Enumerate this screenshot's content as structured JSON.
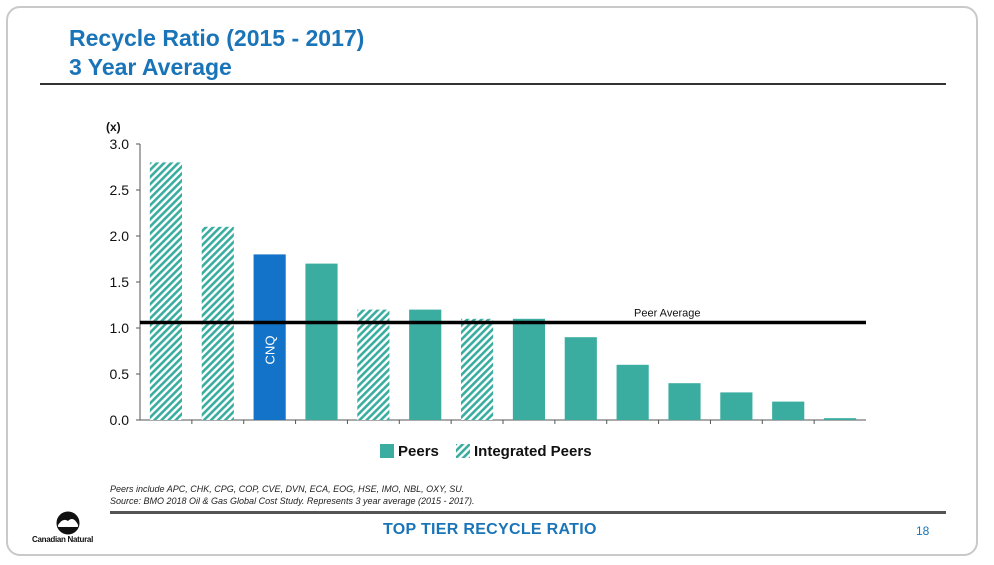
{
  "title_line1": "Recycle Ratio (2015 - 2017)",
  "title_line2": "3 Year Average",
  "chart_data": {
    "type": "bar",
    "ylabel": "(x)",
    "ylim": [
      0,
      3.0
    ],
    "yticks": [
      "0.0",
      "0.5",
      "1.0",
      "1.5",
      "2.0",
      "2.5",
      "3.0"
    ],
    "bars": [
      {
        "value": 2.8,
        "group": "integrated"
      },
      {
        "value": 2.1,
        "group": "integrated"
      },
      {
        "value": 1.8,
        "group": "cnq",
        "label": "CNQ"
      },
      {
        "value": 1.7,
        "group": "peers"
      },
      {
        "value": 1.2,
        "group": "integrated"
      },
      {
        "value": 1.2,
        "group": "peers"
      },
      {
        "value": 1.1,
        "group": "integrated"
      },
      {
        "value": 1.1,
        "group": "peers"
      },
      {
        "value": 0.9,
        "group": "peers"
      },
      {
        "value": 0.6,
        "group": "peers"
      },
      {
        "value": 0.4,
        "group": "peers"
      },
      {
        "value": 0.3,
        "group": "peers"
      },
      {
        "value": 0.2,
        "group": "peers"
      },
      {
        "value": 0.02,
        "group": "peers"
      }
    ],
    "peer_average": {
      "value": 1.06,
      "label": "Peer Average"
    },
    "legend": [
      {
        "name": "Peers",
        "style": "solid"
      },
      {
        "name": "Integrated Peers",
        "style": "hatched"
      }
    ],
    "legend_position": "bottom",
    "colors": {
      "peers": "#3aada0",
      "integrated": "#3aada0",
      "cnq": "#1273c9"
    }
  },
  "notes": {
    "line1": "Peers include APC, CHK, CPG, COP, CVE, DVN, ECA, EOG, HSE, IMO, NBL, OXY, SU.",
    "line2": "Source: BMO 2018 Oil & Gas Global Cost Study. Represents 3 year average (2015 - 2017)."
  },
  "footer": {
    "title": "TOP TIER RECYCLE RATIO",
    "page": "18",
    "logo_text": "Canadian Natural"
  }
}
